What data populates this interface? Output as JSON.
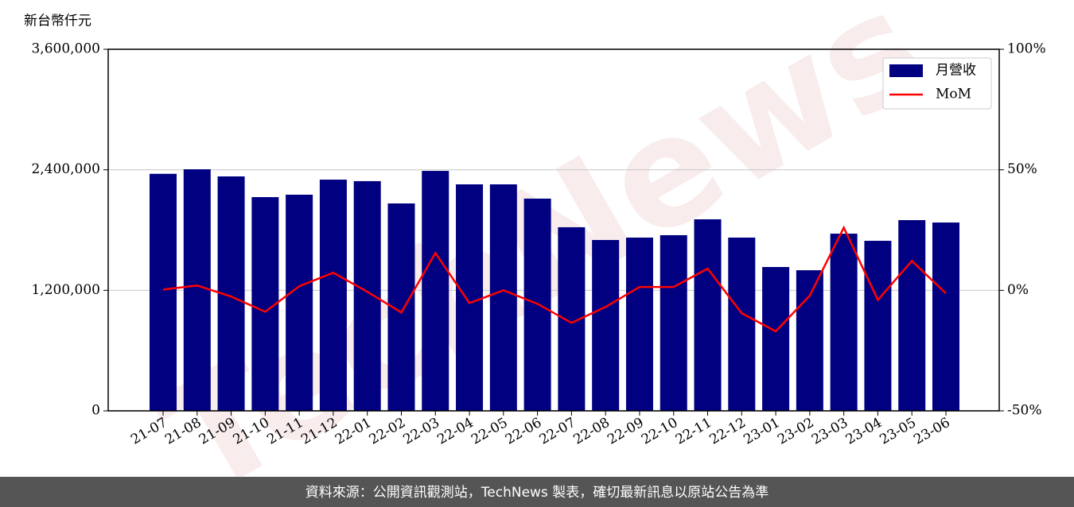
{
  "chart_data": {
    "type": "bar_line",
    "y_label": "新台幣仟元",
    "watermark": "TechNews",
    "footer": "資料來源：公開資訊觀測站，TechNews 製表，確切最新訊息以原站公告為準",
    "categories": [
      "21-07",
      "21-08",
      "21-09",
      "21-10",
      "21-11",
      "21-12",
      "22-01",
      "22-02",
      "22-03",
      "22-04",
      "22-05",
      "22-06",
      "22-07",
      "22-08",
      "22-09",
      "22-10",
      "22-11",
      "22-12",
      "23-01",
      "23-02",
      "23-03",
      "23-04",
      "23-05",
      "23-06"
    ],
    "series": [
      {
        "name": "月營收",
        "type": "bar",
        "color": "#000080",
        "values": [
          2360000,
          2405000,
          2334000,
          2128000,
          2152000,
          2302000,
          2287000,
          2065000,
          2389000,
          2255000,
          2255000,
          2113000,
          1828000,
          1701000,
          1725000,
          1749000,
          1907000,
          1725000,
          1432000,
          1400000,
          1764000,
          1693000,
          1899000,
          1875000
        ]
      },
      {
        "name": "MoM",
        "type": "line",
        "axis": "y2",
        "color": "#ff0000",
        "values": [
          0.3,
          2.0,
          -2.6,
          -8.9,
          1.7,
          7.3,
          -0.6,
          -9.2,
          15.5,
          -5.3,
          0,
          -5.6,
          -13.5,
          -6.9,
          1.4,
          1.4,
          9.0,
          -9.5,
          -17.0,
          -2.2,
          26.0,
          -4.0,
          12.2,
          -1.3
        ]
      }
    ],
    "ylim": [
      0,
      3600000
    ],
    "yticks": [
      0,
      {
        "value": 1200000,
        "label": "1,200,000"
      },
      {
        "value": 2400000,
        "label": "2,400,000"
      },
      {
        "value": 3600000,
        "label": "3,600,000"
      }
    ],
    "y2lim": [
      -50,
      100
    ],
    "y2ticks": [
      {
        "value": -50,
        "label": "-50%"
      },
      {
        "value": 0,
        "label": "0%"
      },
      {
        "value": 50,
        "label": "50%"
      },
      {
        "value": 100,
        "label": "100%"
      }
    ],
    "grid": true,
    "legend": "upper right"
  }
}
